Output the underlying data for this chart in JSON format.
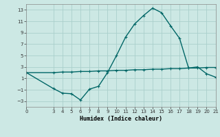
{
  "xlabel": "Humidex (Indice chaleur)",
  "background_color": "#cce8e4",
  "grid_color": "#aacfcb",
  "line_color": "#006666",
  "xlim": [
    0,
    21
  ],
  "ylim": [
    -4,
    14
  ],
  "xticks": [
    0,
    3,
    4,
    5,
    6,
    7,
    8,
    9,
    10,
    11,
    12,
    13,
    14,
    15,
    16,
    17,
    18,
    19,
    20,
    21
  ],
  "yticks": [
    -3,
    -1,
    1,
    3,
    5,
    7,
    9,
    11,
    13
  ],
  "line1_x": [
    0,
    3,
    4,
    5,
    6,
    7,
    8,
    9,
    10,
    11,
    12,
    13,
    14,
    15,
    16,
    17,
    18,
    19,
    20,
    21
  ],
  "line1_y": [
    2.0,
    -0.8,
    -1.6,
    -1.7,
    -2.8,
    -0.9,
    -0.4,
    2.0,
    5.0,
    8.2,
    10.5,
    12.0,
    13.3,
    12.5,
    10.2,
    8.0,
    2.8,
    3.0,
    1.8,
    1.2
  ],
  "line2_x": [
    0,
    3,
    4,
    5,
    6,
    7,
    8,
    9,
    10,
    11,
    12,
    13,
    14,
    15,
    16,
    17,
    18,
    19,
    20,
    21
  ],
  "line2_y": [
    2.0,
    2.0,
    2.1,
    2.1,
    2.2,
    2.2,
    2.3,
    2.3,
    2.4,
    2.4,
    2.5,
    2.5,
    2.6,
    2.6,
    2.7,
    2.7,
    2.8,
    2.8,
    2.9,
    2.9
  ],
  "marker": "+",
  "markersize": 3,
  "linewidth": 1.0,
  "font_size_tick": 5,
  "font_size_label": 6
}
